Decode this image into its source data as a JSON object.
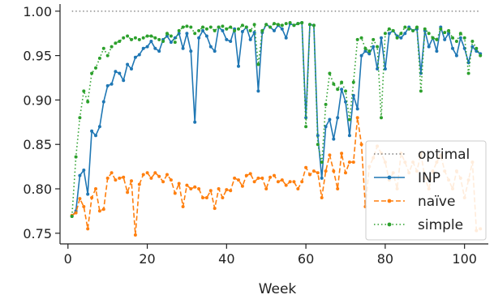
{
  "chart_data": {
    "type": "line",
    "title": "",
    "xlabel": "Week",
    "ylabel": "",
    "xlim": [
      -2,
      106
    ],
    "ylim": [
      0.738,
      1.008
    ],
    "xticks": [
      0,
      20,
      40,
      60,
      80,
      100
    ],
    "xtick_labels": [
      "0",
      "20",
      "40",
      "60",
      "80",
      "100"
    ],
    "yticks": [
      0.75,
      0.8,
      0.85,
      0.9,
      0.95,
      1.0
    ],
    "ytick_labels": [
      "0.75",
      "0.80",
      "0.85",
      "0.90",
      "0.95",
      "1.00"
    ],
    "grid": false,
    "legend_position": "lower-right",
    "x": [
      1,
      2,
      3,
      4,
      5,
      6,
      7,
      8,
      9,
      10,
      11,
      12,
      13,
      14,
      15,
      16,
      17,
      18,
      19,
      20,
      21,
      22,
      23,
      24,
      25,
      26,
      27,
      28,
      29,
      30,
      31,
      32,
      33,
      34,
      35,
      36,
      37,
      38,
      39,
      40,
      41,
      42,
      43,
      44,
      45,
      46,
      47,
      48,
      49,
      50,
      51,
      52,
      53,
      54,
      55,
      56,
      57,
      58,
      59,
      60,
      61,
      62,
      63,
      64,
      65,
      66,
      67,
      68,
      69,
      70,
      71,
      72,
      73,
      74,
      75,
      76,
      77,
      78,
      79,
      80,
      81,
      82,
      83,
      84,
      85,
      86,
      87,
      88,
      89,
      90,
      91,
      92,
      93,
      94,
      95,
      96,
      97,
      98,
      99,
      100,
      101,
      102,
      103,
      104
    ],
    "series": [
      {
        "name": "optimal",
        "color": "#7f7f7f",
        "style": "dotted",
        "marker": false,
        "values": [
          1,
          1,
          1,
          1,
          1,
          1,
          1,
          1,
          1,
          1,
          1,
          1,
          1,
          1,
          1,
          1,
          1,
          1,
          1,
          1,
          1,
          1,
          1,
          1,
          1,
          1,
          1,
          1,
          1,
          1,
          1,
          1,
          1,
          1,
          1,
          1,
          1,
          1,
          1,
          1,
          1,
          1,
          1,
          1,
          1,
          1,
          1,
          1,
          1,
          1,
          1,
          1,
          1,
          1,
          1,
          1,
          1,
          1,
          1,
          1,
          1,
          1,
          1,
          1,
          1,
          1,
          1,
          1,
          1,
          1,
          1,
          1,
          1,
          1,
          1,
          1,
          1,
          1,
          1,
          1,
          1,
          1,
          1,
          1,
          1,
          1,
          1,
          1,
          1,
          1,
          1,
          1,
          1,
          1,
          1,
          1,
          1,
          1,
          1,
          1,
          1,
          1,
          1,
          1
        ]
      },
      {
        "name": "INP",
        "color": "#1f77b4",
        "style": "solid",
        "marker": true,
        "values": [
          0.769,
          0.775,
          0.815,
          0.821,
          0.794,
          0.865,
          0.86,
          0.87,
          0.898,
          0.916,
          0.918,
          0.932,
          0.93,
          0.922,
          0.94,
          0.935,
          0.948,
          0.951,
          0.958,
          0.96,
          0.966,
          0.958,
          0.955,
          0.968,
          0.972,
          0.965,
          0.97,
          0.975,
          0.958,
          0.975,
          0.955,
          0.875,
          0.97,
          0.978,
          0.972,
          0.96,
          0.955,
          0.982,
          0.978,
          0.968,
          0.966,
          0.98,
          0.938,
          0.977,
          0.982,
          0.968,
          0.976,
          0.91,
          0.976,
          0.985,
          0.982,
          0.978,
          0.984,
          0.98,
          0.97,
          0.986,
          0.984,
          0.986,
          0.987,
          0.88,
          0.985,
          0.984,
          0.86,
          0.812,
          0.87,
          0.878,
          0.856,
          0.88,
          0.912,
          0.898,
          0.86,
          0.905,
          0.89,
          0.95,
          0.955,
          0.952,
          0.96,
          0.935,
          0.97,
          0.935,
          0.975,
          0.978,
          0.972,
          0.97,
          0.975,
          0.982,
          0.978,
          0.98,
          0.93,
          0.978,
          0.96,
          0.97,
          0.955,
          0.982,
          0.968,
          0.975,
          0.958,
          0.95,
          0.97,
          0.958,
          0.942,
          0.96,
          0.955,
          0.952
        ]
      },
      {
        "name": "naïve",
        "color": "#ff7f0e",
        "style": "dashed",
        "marker": true,
        "values": [
          0.77,
          0.773,
          0.789,
          0.78,
          0.755,
          0.79,
          0.8,
          0.775,
          0.777,
          0.812,
          0.818,
          0.81,
          0.812,
          0.813,
          0.796,
          0.809,
          0.748,
          0.805,
          0.816,
          0.818,
          0.812,
          0.818,
          0.814,
          0.808,
          0.816,
          0.81,
          0.795,
          0.806,
          0.78,
          0.804,
          0.8,
          0.802,
          0.8,
          0.79,
          0.79,
          0.798,
          0.778,
          0.8,
          0.79,
          0.799,
          0.798,
          0.812,
          0.81,
          0.803,
          0.815,
          0.817,
          0.808,
          0.812,
          0.812,
          0.8,
          0.813,
          0.815,
          0.808,
          0.81,
          0.804,
          0.808,
          0.808,
          0.8,
          0.808,
          0.824,
          0.816,
          0.82,
          0.818,
          0.79,
          0.82,
          0.838,
          0.82,
          0.8,
          0.84,
          0.818,
          0.83,
          0.83,
          0.88,
          0.85,
          0.78,
          0.825,
          0.835,
          0.848,
          0.84,
          0.83,
          0.81,
          0.818,
          0.8,
          0.84,
          0.83,
          0.818,
          0.83,
          0.82,
          0.84,
          0.812,
          0.8,
          0.82,
          0.83,
          0.838,
          0.82,
          0.81,
          0.8,
          0.82,
          0.812,
          0.79,
          0.81,
          0.83,
          0.753,
          0.755
        ]
      },
      {
        "name": "simple",
        "color": "#2ca02c",
        "style": "dotted",
        "marker": true,
        "values": [
          0.769,
          0.836,
          0.88,
          0.91,
          0.898,
          0.93,
          0.936,
          0.947,
          0.958,
          0.95,
          0.96,
          0.964,
          0.966,
          0.97,
          0.972,
          0.968,
          0.97,
          0.968,
          0.97,
          0.972,
          0.972,
          0.97,
          0.968,
          0.966,
          0.975,
          0.972,
          0.965,
          0.978,
          0.982,
          0.983,
          0.982,
          0.975,
          0.978,
          0.982,
          0.98,
          0.982,
          0.978,
          0.982,
          0.983,
          0.98,
          0.982,
          0.978,
          0.98,
          0.984,
          0.982,
          0.978,
          0.985,
          0.94,
          0.978,
          0.985,
          0.982,
          0.986,
          0.985,
          0.984,
          0.986,
          0.987,
          0.984,
          0.986,
          0.987,
          0.87,
          0.985,
          0.984,
          0.85,
          0.83,
          0.895,
          0.93,
          0.918,
          0.912,
          0.92,
          0.91,
          0.878,
          0.92,
          0.968,
          0.97,
          0.958,
          0.955,
          0.968,
          0.96,
          0.88,
          0.975,
          0.98,
          0.978,
          0.97,
          0.975,
          0.982,
          0.98,
          0.978,
          0.982,
          0.91,
          0.98,
          0.975,
          0.97,
          0.968,
          0.98,
          0.976,
          0.978,
          0.97,
          0.966,
          0.975,
          0.97,
          0.93,
          0.966,
          0.958,
          0.95
        ]
      }
    ]
  }
}
